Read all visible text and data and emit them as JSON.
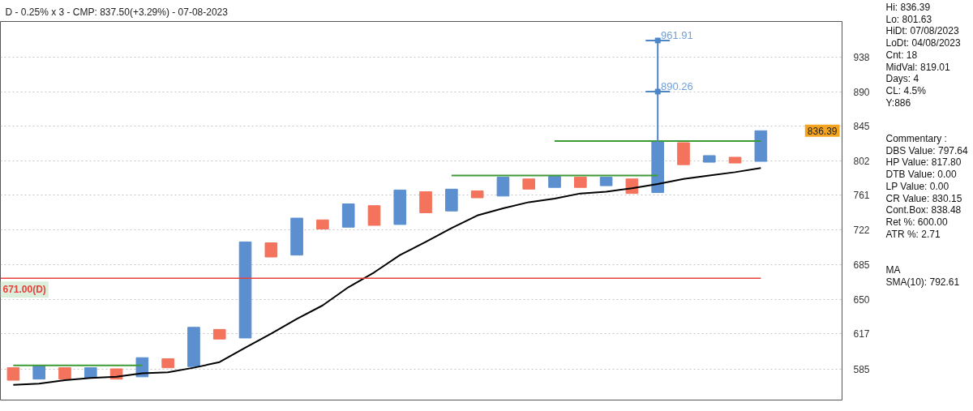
{
  "chart_data": [
    {
      "type": "bar",
      "title": "D - 0.25% x 3 - CMP: 837.50(+3.29%) - 07-08-2023",
      "categories": [
        null,
        null,
        null,
        null,
        null,
        null,
        null,
        null,
        null,
        null,
        null,
        null,
        null,
        null,
        null,
        null,
        null,
        null,
        null,
        null,
        null,
        null,
        null,
        null,
        null,
        null,
        null,
        null,
        null,
        null
      ],
      "series": [
        {
          "type": "bar",
          "colors": [
            "#f4735c",
            "#5b8fcf",
            "#f4735c",
            "#5b8fcf",
            "#f4735c",
            "#5b8fcf",
            "#f4735c",
            "#5b8fcf",
            "#f4735c",
            "#5b8fcf",
            "#f4735c",
            "#5b8fcf",
            "#f4735c",
            "#5b8fcf",
            "#f4735c",
            "#5b8fcf",
            "#f4735c",
            "#5b8fcf",
            "#f4735c",
            "#5b8fcf",
            "#f4735c",
            "#5b8fcf",
            "#f4735c",
            "#5b8fcf",
            "#f4735c",
            "#5b8fcf",
            "#f4735c",
            "#5b8fcf",
            "#f4735c",
            "#5b8fcf"
          ],
          "base": [
            575,
            576,
            576,
            577,
            576,
            578,
            586,
            587,
            612,
            613,
            693,
            695,
            723,
            725,
            727,
            728,
            741,
            743,
            758,
            760,
            768,
            770,
            770,
            772,
            763,
            764,
            797,
            800,
            799,
            801
          ],
          "values": [
            11,
            12,
            10,
            9,
            9,
            17,
            8,
            36,
            9,
            96,
            15,
            40,
            10,
            26,
            22,
            39,
            24,
            25,
            8,
            22,
            12,
            13,
            12,
            10,
            17,
            61,
            27,
            8,
            7,
            38
          ]
        },
        {
          "type": "line",
          "color": "#000000",
          "values": [
            571,
            572,
            575,
            577,
            578,
            581,
            582,
            586,
            591,
            604,
            617,
            631,
            644,
            662,
            677,
            695,
            709,
            724,
            738,
            746,
            753,
            757,
            763,
            765,
            769,
            774,
            780,
            784,
            788,
            793
          ]
        },
        {
          "type": "line",
          "color": "#3d9b35",
          "values": [
            588,
            588,
            588,
            588,
            588,
            588,
            null,
            null,
            null,
            null,
            null,
            null,
            null,
            null,
            null,
            null,
            null,
            null,
            null,
            null,
            null,
            null,
            null,
            null,
            null,
            null,
            null,
            null,
            null,
            null
          ]
        },
        {
          "type": "line",
          "color": "#3d9b35",
          "values": [
            null,
            null,
            null,
            null,
            null,
            null,
            null,
            null,
            null,
            null,
            null,
            null,
            null,
            null,
            null,
            null,
            null,
            784,
            784,
            784,
            784,
            784,
            784,
            784,
            784,
            784,
            null,
            null,
            null,
            null
          ]
        },
        {
          "type": "line",
          "color": "#3d9b35",
          "values": [
            null,
            null,
            null,
            null,
            null,
            null,
            null,
            null,
            null,
            null,
            null,
            null,
            null,
            null,
            null,
            null,
            null,
            null,
            null,
            null,
            null,
            826,
            826,
            826,
            826,
            826,
            826,
            826,
            826,
            826
          ]
        },
        {
          "type": "scatter",
          "color": "#4f86c6",
          "marker": "square",
          "values": [
            null,
            null,
            null,
            null,
            null,
            null,
            null,
            null,
            null,
            null,
            null,
            null,
            null,
            null,
            null,
            null,
            null,
            null,
            null,
            null,
            null,
            null,
            null,
            null,
            null,
            890.26,
            null,
            null,
            null,
            null
          ],
          "value_labels": [
            null,
            null,
            null,
            null,
            null,
            null,
            null,
            null,
            null,
            null,
            null,
            null,
            null,
            null,
            null,
            null,
            null,
            null,
            null,
            null,
            null,
            null,
            null,
            null,
            null,
            "890.26",
            null,
            null,
            null,
            null
          ],
          "errors": [
            null,
            null,
            null,
            null,
            null,
            null,
            null,
            null,
            null,
            null,
            null,
            null,
            null,
            null,
            null,
            null,
            null,
            null,
            null,
            null,
            null,
            null,
            null,
            null,
            null,
            [
              825,
              890.26
            ],
            null,
            null,
            null,
            null
          ]
        },
        {
          "type": "scatter",
          "color": "#4f86c6",
          "marker": "square",
          "values": [
            null,
            null,
            null,
            null,
            null,
            null,
            null,
            null,
            null,
            null,
            null,
            null,
            null,
            null,
            null,
            null,
            null,
            null,
            null,
            null,
            null,
            null,
            null,
            null,
            null,
            961.91,
            null,
            null,
            null,
            null
          ],
          "value_labels": [
            null,
            null,
            null,
            null,
            null,
            null,
            null,
            null,
            null,
            null,
            null,
            null,
            null,
            null,
            null,
            null,
            null,
            null,
            null,
            null,
            null,
            null,
            null,
            null,
            null,
            "961.91",
            null,
            null,
            null,
            null
          ],
          "errors": [
            null,
            null,
            null,
            null,
            null,
            null,
            null,
            null,
            null,
            null,
            null,
            null,
            null,
            null,
            null,
            null,
            null,
            null,
            null,
            null,
            null,
            null,
            null,
            null,
            null,
            [
              890.26,
              961.91
            ],
            null,
            null,
            null,
            null
          ]
        }
      ],
      "ref_lines": [
        {
          "axis": "y",
          "value": 671,
          "label": "671.00(D)",
          "color": "#e8403a"
        }
      ],
      "annotations": [
        "836.39"
      ],
      "ylim": [
        558,
        990
      ],
      "yticks": [
        585,
        617,
        650,
        685,
        722,
        761,
        802,
        845,
        890,
        938
      ],
      "log": "y",
      "grid": "y",
      "tick_labels": "y"
    },
    {
      "type": "other",
      "annotations": [
        "Hi: 836.39",
        "Lo: 801.63",
        "HiDt: 07/08/2023",
        "LoDt: 04/08/2023",
        "Cnt: 18",
        "MidVal: 819.01",
        "Days: 4",
        "CL: 4.5%",
        "Y:886"
      ]
    },
    {
      "type": "other",
      "annotations": [
        "Commentary :",
        "DBS Value: 797.64",
        "HP Value: 817.80",
        "DTB Value: 0.00",
        "LP Value: 0.00",
        "CR Value: 830.15",
        "Cont.Box: 838.48",
        "Ret %: 600.00",
        "ATR %: 2.71"
      ]
    },
    {
      "type": "other",
      "annotations": [
        "MA",
        "SMA(10): 792.61"
      ]
    }
  ]
}
